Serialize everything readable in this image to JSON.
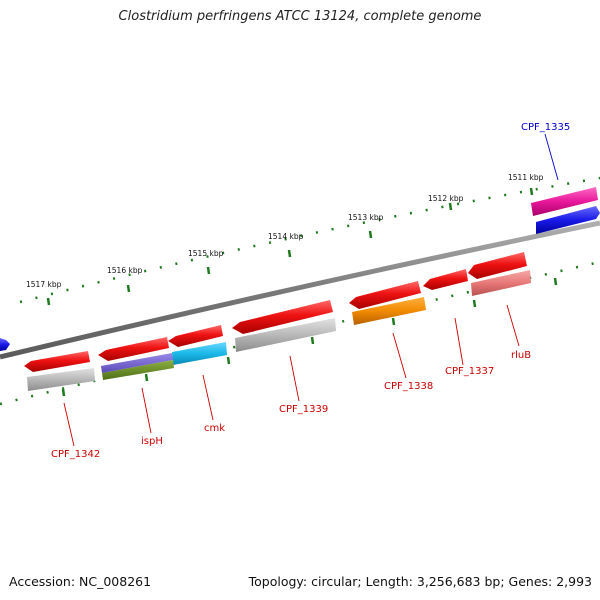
{
  "title": "Clostridium perfringens ATCC 13124, complete genome",
  "footer": {
    "accession": "Accession: NC_008261",
    "topology": "Topology: circular; Length: 3,256,683 bp; Genes: 2,993"
  },
  "ruler_labels": [
    "1511 kbp",
    "1512 kbp",
    "1513 kbp",
    "1514 kbp",
    "1515 kbp",
    "1516 kbp",
    "1517 kbp"
  ],
  "gene_labels": [
    "CPF_1335",
    "CPF_1337",
    "rluB",
    "CPF_1338",
    "CPF_1339",
    "cmk",
    "ispH",
    "CPF_1342"
  ],
  "colors": {
    "backbone": "#8a8a8a",
    "tick": "#1f7a1f",
    "forward_gene": "#e81010",
    "cog_gray": "#b0b0b0",
    "cog_orange": "#f08a00",
    "cog_salmon": "#e87878",
    "cog_purple": "#6a5acd",
    "cog_olive": "#6b8e23",
    "cog_cyan": "#1ab8e8",
    "cog_magenta": "#e8189a",
    "reverse_gene": "#1a1ae8",
    "label_red": "#cc0000",
    "label_blue": "#0000cc"
  }
}
